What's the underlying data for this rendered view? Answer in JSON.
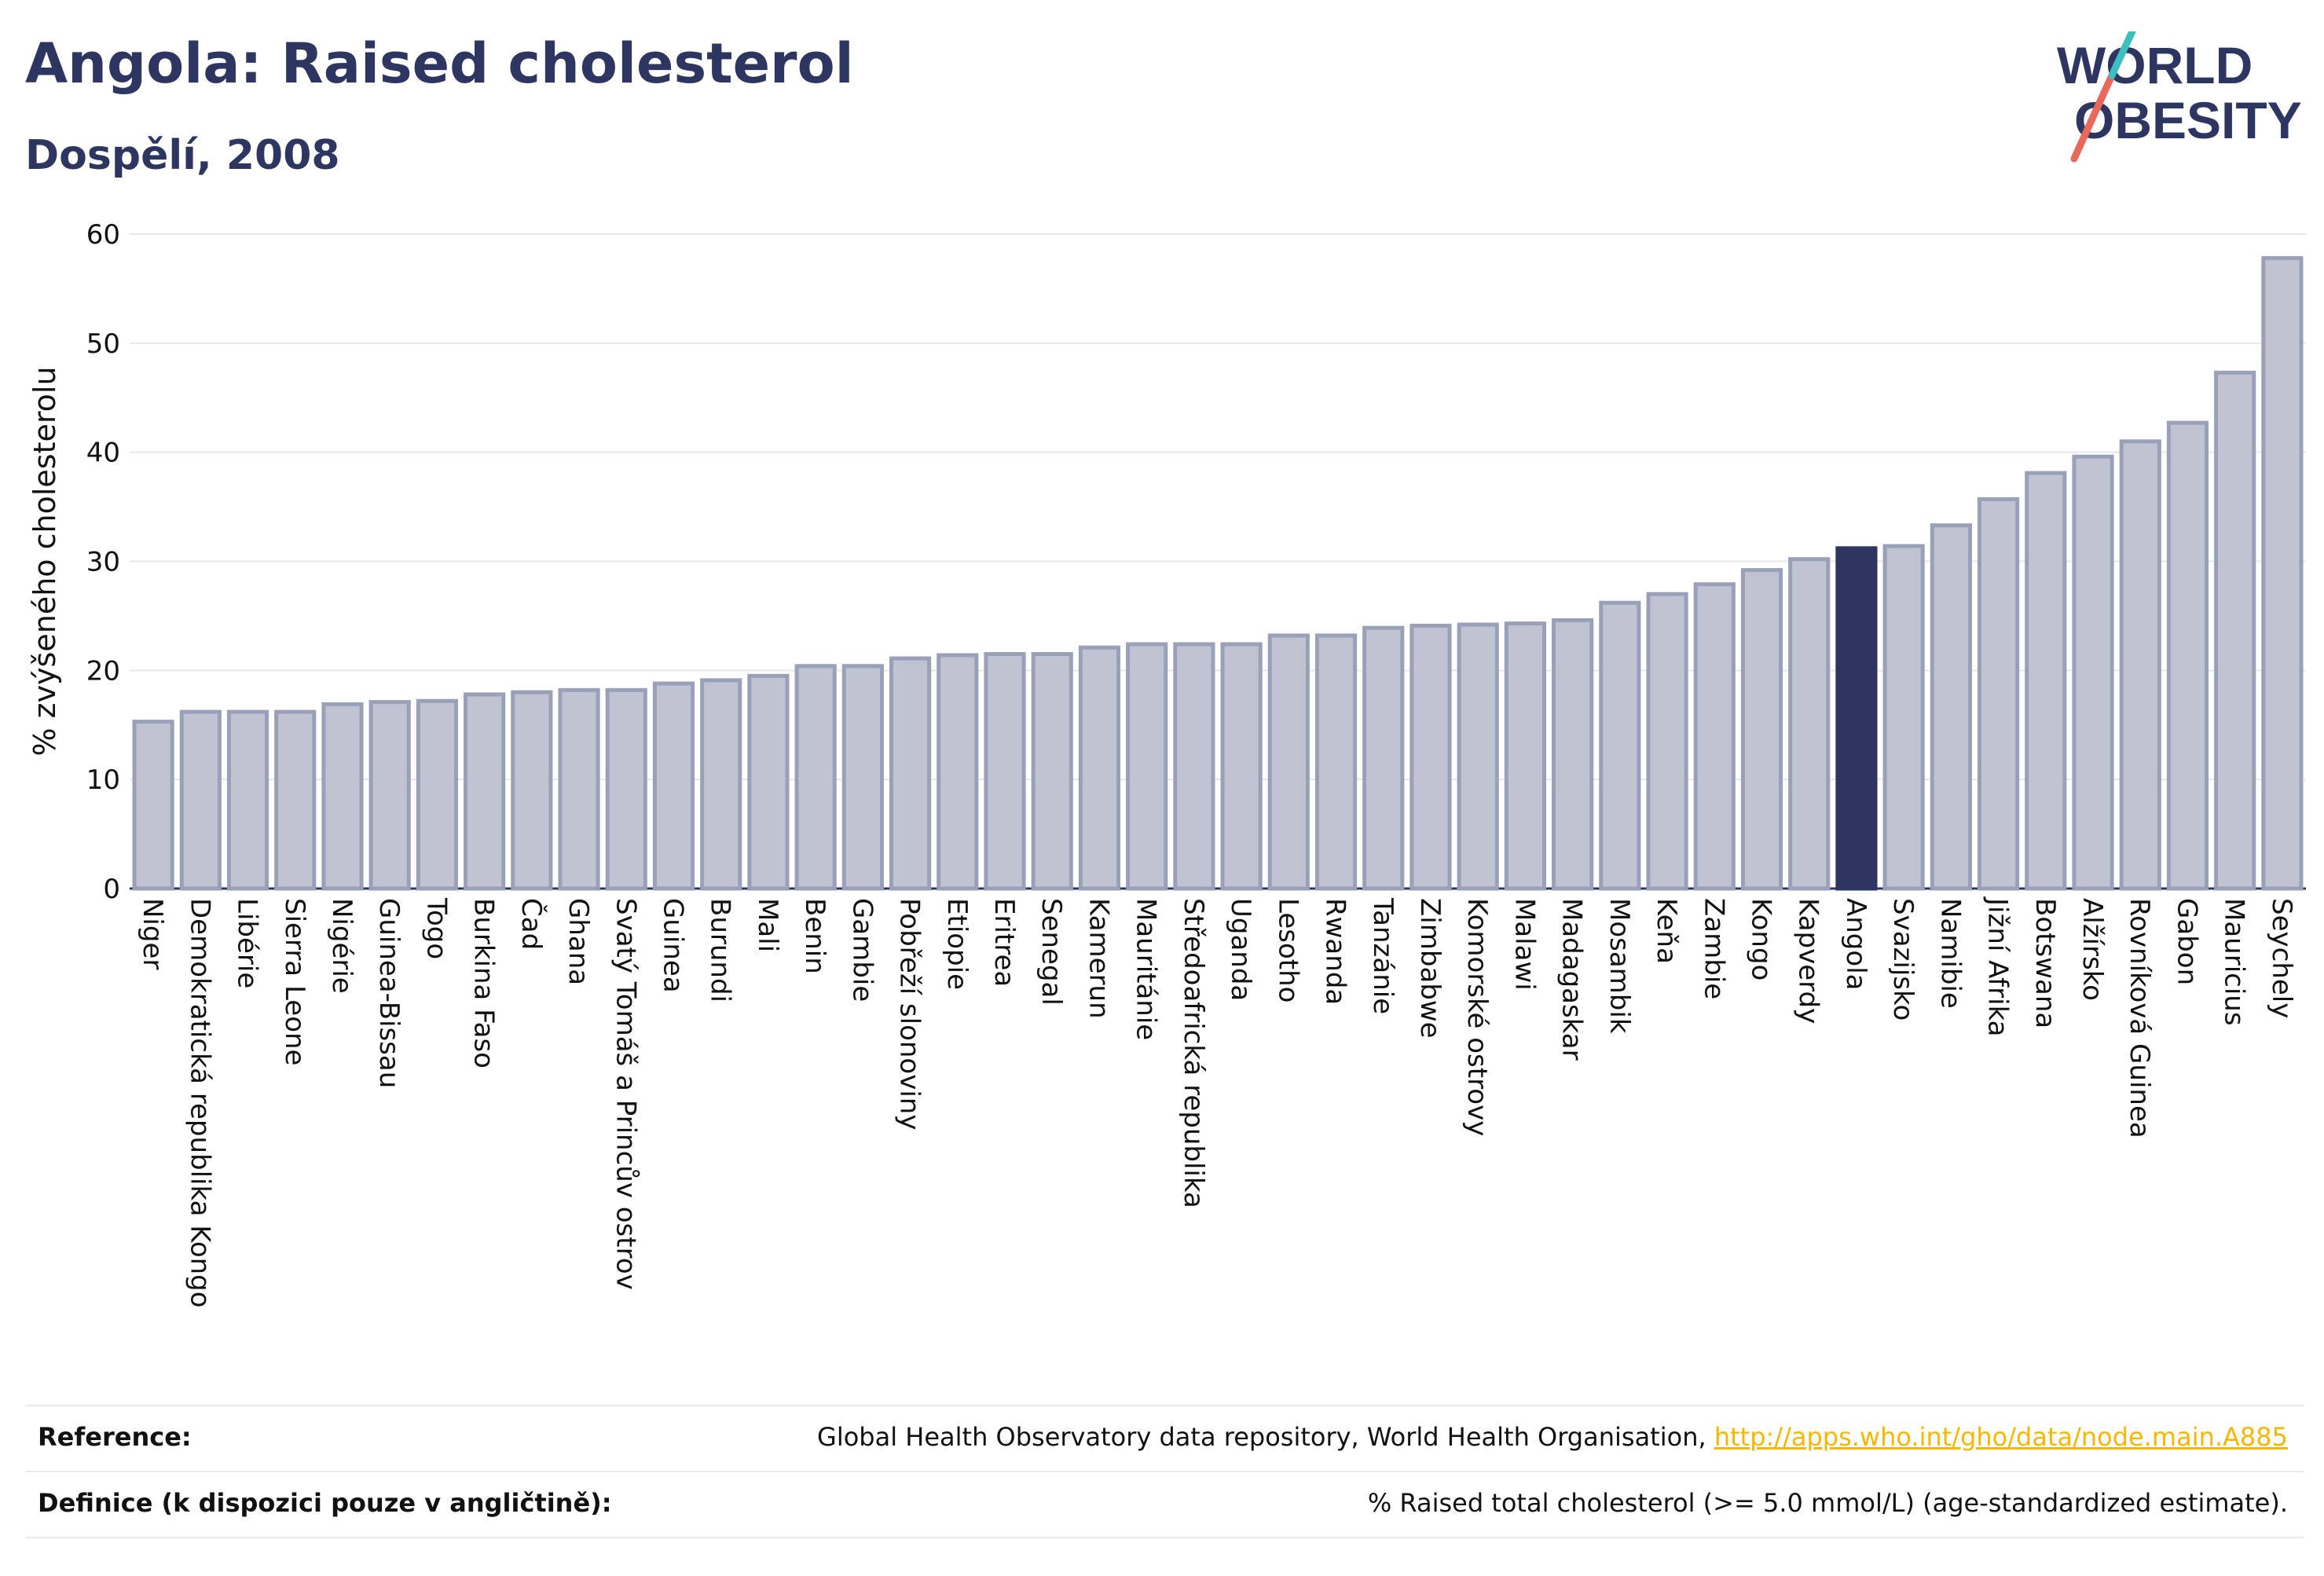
{
  "title": "Angola: Raised cholesterol",
  "subtitle": "Dospělí, 2008",
  "logo": {
    "line1": "WORLD",
    "line2": "OBESITY"
  },
  "colors": {
    "highlight": "#2c3660",
    "bar": "#c0c4d2",
    "bar_stroke": "#9aa0b8",
    "grid": "#e6e7ef",
    "accent_red": "#e8685a",
    "accent_teal": "#3ebfbf",
    "link": "#f5b700"
  },
  "chart_data": {
    "type": "bar",
    "ylabel": "% zvýšeného cholesterolu",
    "ylim": [
      0,
      60
    ],
    "yticks": [
      0,
      10,
      20,
      30,
      40,
      50,
      60
    ],
    "highlight": "Angola",
    "categories": [
      "Niger",
      "Demokratická republika Kongo",
      "Libérie",
      "Sierra Leone",
      "Nigérie",
      "Guinea-Bissau",
      "Togo",
      "Burkina Faso",
      "Čad",
      "Ghana",
      "Svatý Tomáš a Princův ostrov",
      "Guinea",
      "Burundi",
      "Mali",
      "Benin",
      "Gambie",
      "Pobřeží slonoviny",
      "Etiopie",
      "Eritrea",
      "Senegal",
      "Kamerun",
      "Mauritánie",
      "Středoafrická republika",
      "Uganda",
      "Lesotho",
      "Rwanda",
      "Tanzánie",
      "Zimbabwe",
      "Komorské ostrovy",
      "Malawi",
      "Madagaskar",
      "Mosambik",
      "Keňa",
      "Zambie",
      "Kongo",
      "Kapverdy",
      "Angola",
      "Svazijsko",
      "Namibie",
      "Jižní Afrika",
      "Botswana",
      "Alžírsko",
      "Rovníková Guinea",
      "Gabon",
      "Mauricius",
      "Seychely"
    ],
    "values": [
      15.3,
      16.2,
      16.2,
      16.2,
      16.9,
      17.1,
      17.2,
      17.8,
      18.0,
      18.2,
      18.2,
      18.8,
      19.1,
      19.5,
      20.4,
      20.4,
      21.1,
      21.4,
      21.5,
      21.5,
      22.1,
      22.4,
      22.4,
      22.4,
      23.2,
      23.2,
      23.9,
      24.1,
      24.2,
      24.3,
      24.6,
      26.2,
      27.0,
      27.9,
      29.2,
      30.2,
      31.2,
      31.4,
      33.3,
      35.7,
      38.1,
      39.6,
      41.0,
      42.7,
      47.3,
      57.8
    ]
  },
  "footer": {
    "reference_label": "Reference:",
    "reference_text": "Global Health Observatory data repository, World Health Organisation, ",
    "reference_link": "http://apps.who.int/gho/data/node.main.A885",
    "definition_label": "Definice (k dispozici pouze v angličtině):",
    "definition_text": "% Raised total cholesterol (>= 5.0 mmol/L) (age-standardized estimate)."
  }
}
